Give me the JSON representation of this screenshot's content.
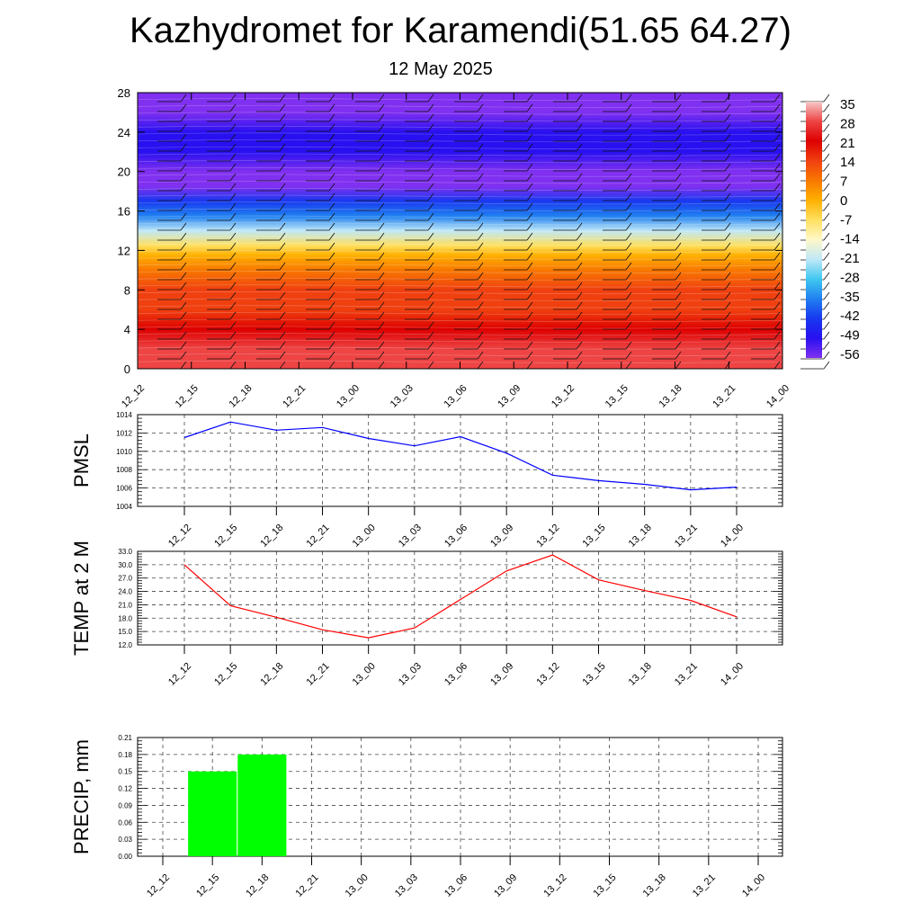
{
  "header": {
    "title": "Kazhydromet for Karamendi(51.65 64.27)",
    "subtitle": "12 May 2025"
  },
  "chart_data": [
    {
      "type": "heatmap",
      "x_tick_labels": [
        "12_12",
        "12_15",
        "12_18",
        "12_21",
        "13_00",
        "13_03",
        "13_06",
        "13_09",
        "13_12",
        "13_15",
        "13_18",
        "13_21",
        "14_00"
      ],
      "y_tick_labels": [
        "0",
        "4",
        "8",
        "12",
        "16",
        "20",
        "24",
        "28"
      ],
      "ylim": [
        0,
        28
      ],
      "colorbar": {
        "labels": [
          "35",
          "28",
          "21",
          "14",
          "7",
          "0",
          "-7",
          "-14",
          "-21",
          "-28",
          "-35",
          "-42",
          "-49",
          "-56"
        ],
        "colors": [
          "#f5c8c8",
          "#ee4444",
          "#dd0000",
          "#f04010",
          "#f87800",
          "#ffb000",
          "#ffe060",
          "#fff8c8",
          "#bfe8f8",
          "#40c8f0",
          "#2080f0",
          "#1838f0",
          "#2810f0",
          "#8030f0"
        ]
      },
      "vertical_profile": [
        {
          "level": 0,
          "value": 30
        },
        {
          "level": 2,
          "value": 26
        },
        {
          "level": 4,
          "value": 21
        },
        {
          "level": 6,
          "value": 16
        },
        {
          "level": 8,
          "value": 11
        },
        {
          "level": 10,
          "value": 4
        },
        {
          "level": 11.5,
          "value": -3
        },
        {
          "level": 12.5,
          "value": -10
        },
        {
          "level": 14,
          "value": -20
        },
        {
          "level": 15.5,
          "value": -32
        },
        {
          "level": 17,
          "value": -45
        },
        {
          "level": 18.5,
          "value": -55
        },
        {
          "level": 20,
          "value": -58
        },
        {
          "level": 22,
          "value": -52
        },
        {
          "level": 24,
          "value": -50
        },
        {
          "level": 26,
          "value": -56
        },
        {
          "level": 28,
          "value": -56
        }
      ],
      "grid": false
    },
    {
      "type": "line",
      "ylabel": "PMSL",
      "x": [
        "12_12",
        "12_15",
        "12_18",
        "12_21",
        "13_00",
        "13_03",
        "13_06",
        "13_09",
        "13_12",
        "13_15",
        "13_18",
        "13_21",
        "14_00"
      ],
      "series": [
        {
          "values": [
            1011.5,
            1013.2,
            1012.3,
            1012.6,
            1011.4,
            1010.6,
            1011.6,
            1009.8,
            1007.4,
            1006.8,
            1006.4,
            1005.8,
            1006.1
          ],
          "color": "#0000ff"
        }
      ],
      "y_tick_labels": [
        "1004",
        "1006",
        "1008",
        "1010",
        "1012",
        "1014"
      ],
      "ylim": [
        1004,
        1014
      ],
      "grid": true
    },
    {
      "type": "line",
      "ylabel": "TEMP at 2 M",
      "x": [
        "12_12",
        "12_15",
        "12_18",
        "12_21",
        "13_00",
        "13_03",
        "13_06",
        "13_09",
        "13_12",
        "13_15",
        "13_18",
        "13_21",
        "14_00"
      ],
      "series": [
        {
          "values": [
            30.0,
            20.8,
            18.2,
            15.4,
            13.6,
            15.8,
            22.2,
            28.6,
            32.2,
            26.6,
            24.2,
            22.0,
            18.3
          ],
          "color": "#ff0000"
        }
      ],
      "y_tick_labels": [
        "12.0",
        "15.0",
        "18.0",
        "21.0",
        "24.0",
        "27.0",
        "30.0",
        "33.0"
      ],
      "ylim": [
        12,
        33
      ],
      "grid": true
    },
    {
      "type": "bar",
      "ylabel": "PRECIP, mm",
      "categories": [
        "12_12",
        "12_15",
        "12_18",
        "12_21",
        "13_00",
        "13_03",
        "13_06",
        "13_09",
        "13_12",
        "13_15",
        "13_18",
        "13_21",
        "14_00"
      ],
      "values": [
        0,
        0.15,
        0.18,
        0,
        0,
        0,
        0,
        0,
        0,
        0,
        0,
        0,
        0
      ],
      "color": "#00ff00",
      "y_tick_labels": [
        "0.00",
        "0.03",
        "0.06",
        "0.09",
        "0.12",
        "0.15",
        "0.18",
        "0.21"
      ],
      "ylim": [
        0,
        0.21
      ],
      "grid": true
    }
  ]
}
